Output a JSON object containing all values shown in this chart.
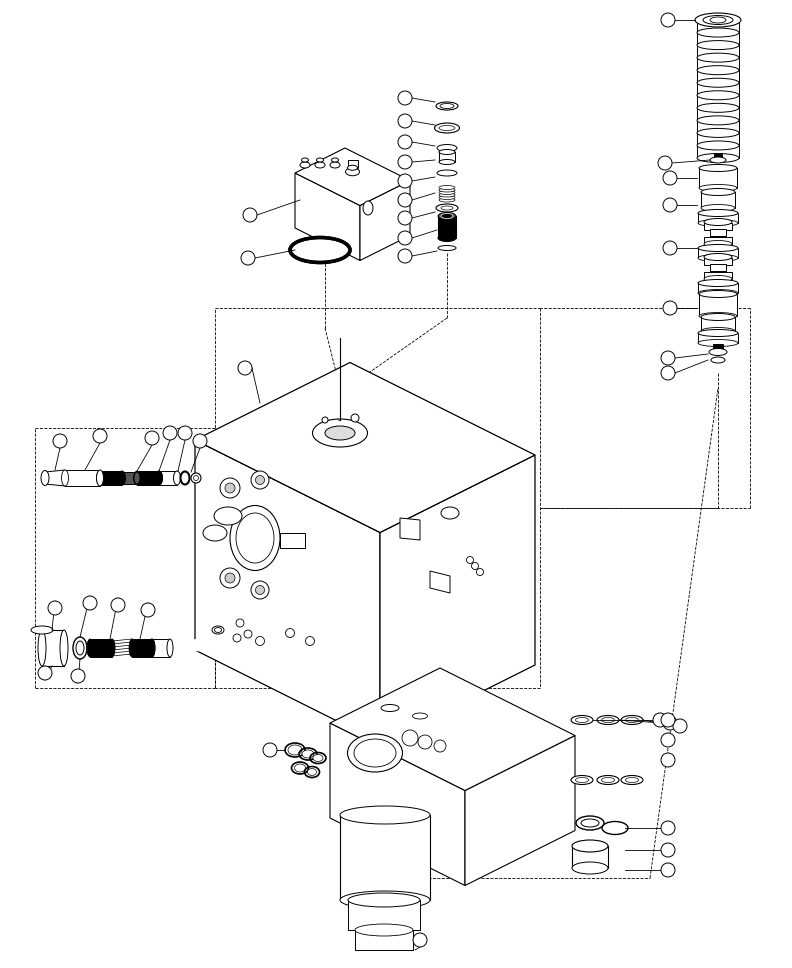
{
  "bg_color": "#ffffff",
  "lc": "#000000",
  "figsize": [
    7.92,
    9.68
  ],
  "dpi": 100,
  "xlim": [
    0,
    792
  ],
  "ylim": [
    0,
    968
  ]
}
